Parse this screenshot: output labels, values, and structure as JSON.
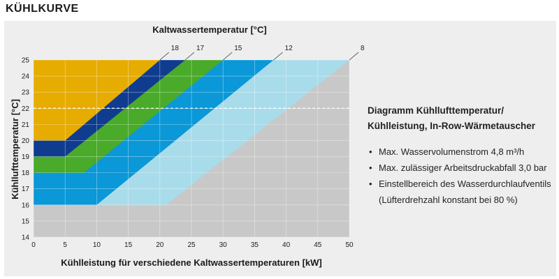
{
  "page": {
    "title": "KÜHLKURVE"
  },
  "info": {
    "title_line1": "Diagramm Kühllufttemperatur/",
    "title_line2": "Kühlleistung, In-Row-Wärmetauscher",
    "items": [
      {
        "text": "Max. Wasservolumenstrom 4,8 m³/h"
      },
      {
        "text": "Max. zulässiger Arbeitsdruckabfall 3,0 bar"
      },
      {
        "text": "Einstellbereich des Wasserdurchlaufventils",
        "subtext": "(Lüfterdrehzahl konstant bei 80 %)"
      }
    ]
  },
  "chart_data": {
    "type": "area",
    "title": "Kaltwassertemperatur [°C]",
    "xlabel": "Kühlleistung für verschiedene Kaltwassertemperaturen [kW]",
    "ylabel": "Kühllufttemperatur [°C]",
    "xlim": [
      0,
      50
    ],
    "ylim": [
      14,
      25
    ],
    "xticks": [
      "0",
      "5",
      "10",
      "15",
      "20",
      "25",
      "30",
      "35",
      "40",
      "45",
      "50"
    ],
    "yticks": [
      "14",
      "15",
      "16",
      "17",
      "18",
      "19",
      "20",
      "21",
      "22",
      "23",
      "24",
      "25"
    ],
    "grid": true,
    "reference_line": {
      "y": 22,
      "style": "dashed",
      "color": "#ffffff"
    },
    "background_color": "#c8c8c8",
    "series": [
      {
        "name": "8",
        "color": "#a8dcea",
        "points": [
          [
            21,
            16
          ],
          [
            50,
            25
          ]
        ]
      },
      {
        "name": "12",
        "color": "#0a98d8",
        "points": [
          [
            10,
            16
          ],
          [
            38,
            25
          ]
        ]
      },
      {
        "name": "15",
        "color": "#4aaa2a",
        "points": [
          [
            8,
            18
          ],
          [
            30,
            25
          ]
        ]
      },
      {
        "name": "17",
        "color": "#103c90",
        "points": [
          [
            5,
            19
          ],
          [
            24,
            25
          ]
        ]
      },
      {
        "name": "18",
        "color": "#e6ac00",
        "points": [
          [
            5,
            20
          ],
          [
            20,
            25
          ]
        ]
      }
    ],
    "series_label_positions": [
      "right-top"
    ]
  }
}
